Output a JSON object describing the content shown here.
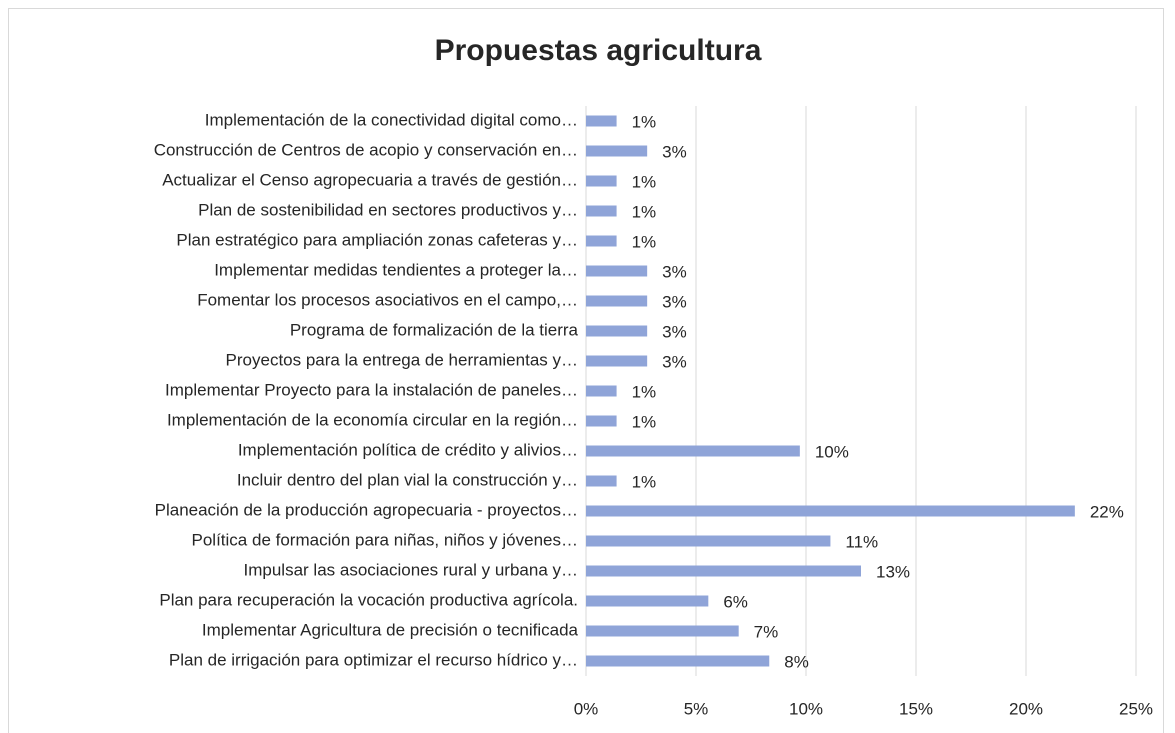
{
  "chart_data": {
    "type": "bar",
    "orientation": "horizontal",
    "title": "Propuestas agricultura",
    "categories": [
      "Implementación de la conectividad digital como…",
      "Construcción de Centros de acopio y conservación en…",
      "Actualizar el Censo agropecuaria a través de gestión…",
      "Plan de sostenibilidad en sectores productivos y…",
      "Plan estratégico para ampliación zonas cafeteras y…",
      "Implementar medidas tendientes a proteger la…",
      "Fomentar los procesos asociativos en el campo,…",
      "Programa de formalización de la tierra",
      "Proyectos para la entrega de herramientas y…",
      "Implementar Proyecto para la instalación de paneles…",
      "Implementación de la economía circular en la región…",
      "Implementación política de crédito y alivios…",
      "Incluir dentro del plan vial la construcción y…",
      "Planeación de la producción agropecuaria - proyectos…",
      "Política de formación para niñas, niños y jóvenes…",
      "Impulsar las asociaciones rural y urbana y…",
      "Plan para recuperación la vocación productiva agrícola.",
      "Implementar Agricultura de precisión o tecnificada",
      "Plan de irrigación para optimizar el recurso hídrico y…"
    ],
    "values": [
      1.39,
      2.78,
      1.39,
      1.39,
      1.39,
      2.78,
      2.78,
      2.78,
      2.78,
      1.39,
      1.39,
      9.72,
      1.39,
      22.22,
      11.11,
      12.5,
      5.56,
      6.94,
      8.33
    ],
    "value_labels": [
      "1%",
      "3%",
      "1%",
      "1%",
      "1%",
      "3%",
      "3%",
      "3%",
      "3%",
      "1%",
      "1%",
      "10%",
      "1%",
      "22%",
      "11%",
      "13%",
      "6%",
      "7%",
      "8%"
    ],
    "color": "#8fa4d8",
    "xlim": [
      0,
      25
    ],
    "xticks": [
      {
        "value": 0,
        "label": "0%"
      },
      {
        "value": 5,
        "label": "5%"
      },
      {
        "value": 10,
        "label": "10%"
      },
      {
        "value": 15,
        "label": "15%"
      },
      {
        "value": 20,
        "label": "20%"
      },
      {
        "value": 25,
        "label": "25%"
      }
    ],
    "grid": true
  }
}
